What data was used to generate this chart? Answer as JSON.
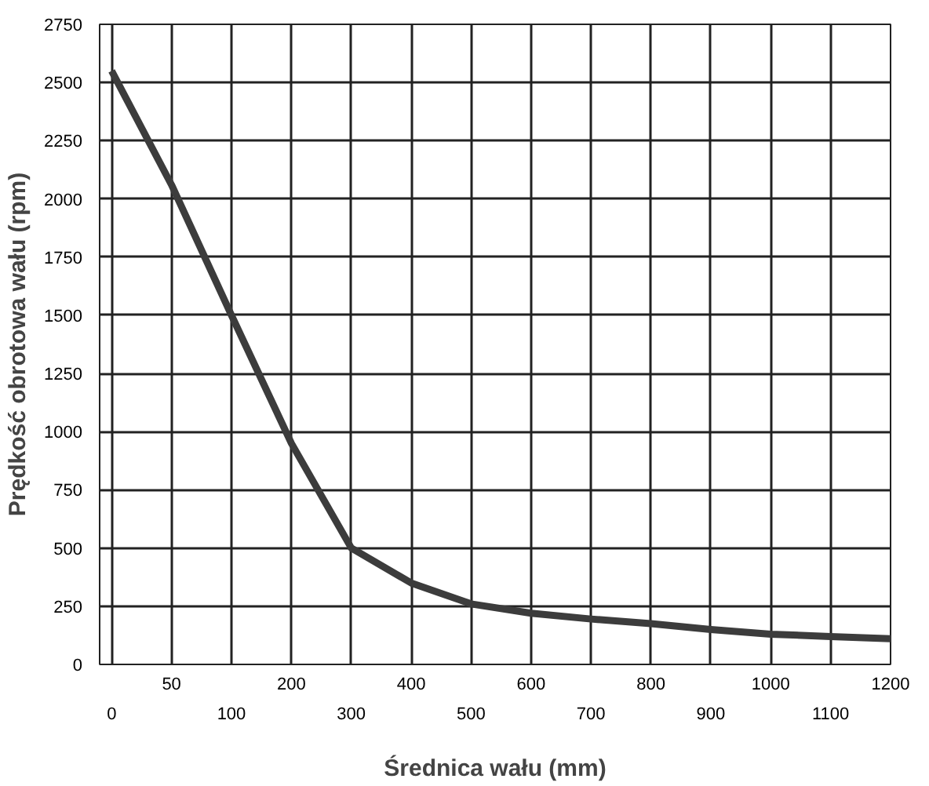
{
  "chart_data": {
    "type": "line",
    "xlabel": "Średnica wału (mm)",
    "ylabel": "Prędkość obrotowa wału (rpm)",
    "categories": [
      "0",
      "50",
      "100",
      "200",
      "300",
      "400",
      "500",
      "600",
      "700",
      "800",
      "900",
      "1000",
      "1100",
      "1200"
    ],
    "series": [
      {
        "color": "#3c3c3c",
        "values": [
          2550,
          2060,
          1500,
          950,
          500,
          350,
          260,
          220,
          195,
          175,
          150,
          130,
          120,
          110
        ]
      }
    ],
    "ylim": [
      0,
      2750
    ],
    "yticks": [
      0,
      250,
      500,
      750,
      1000,
      1250,
      1500,
      1750,
      2000,
      2250,
      2500,
      2750
    ],
    "grid": true,
    "marker": "none",
    "line_style": "solid"
  }
}
